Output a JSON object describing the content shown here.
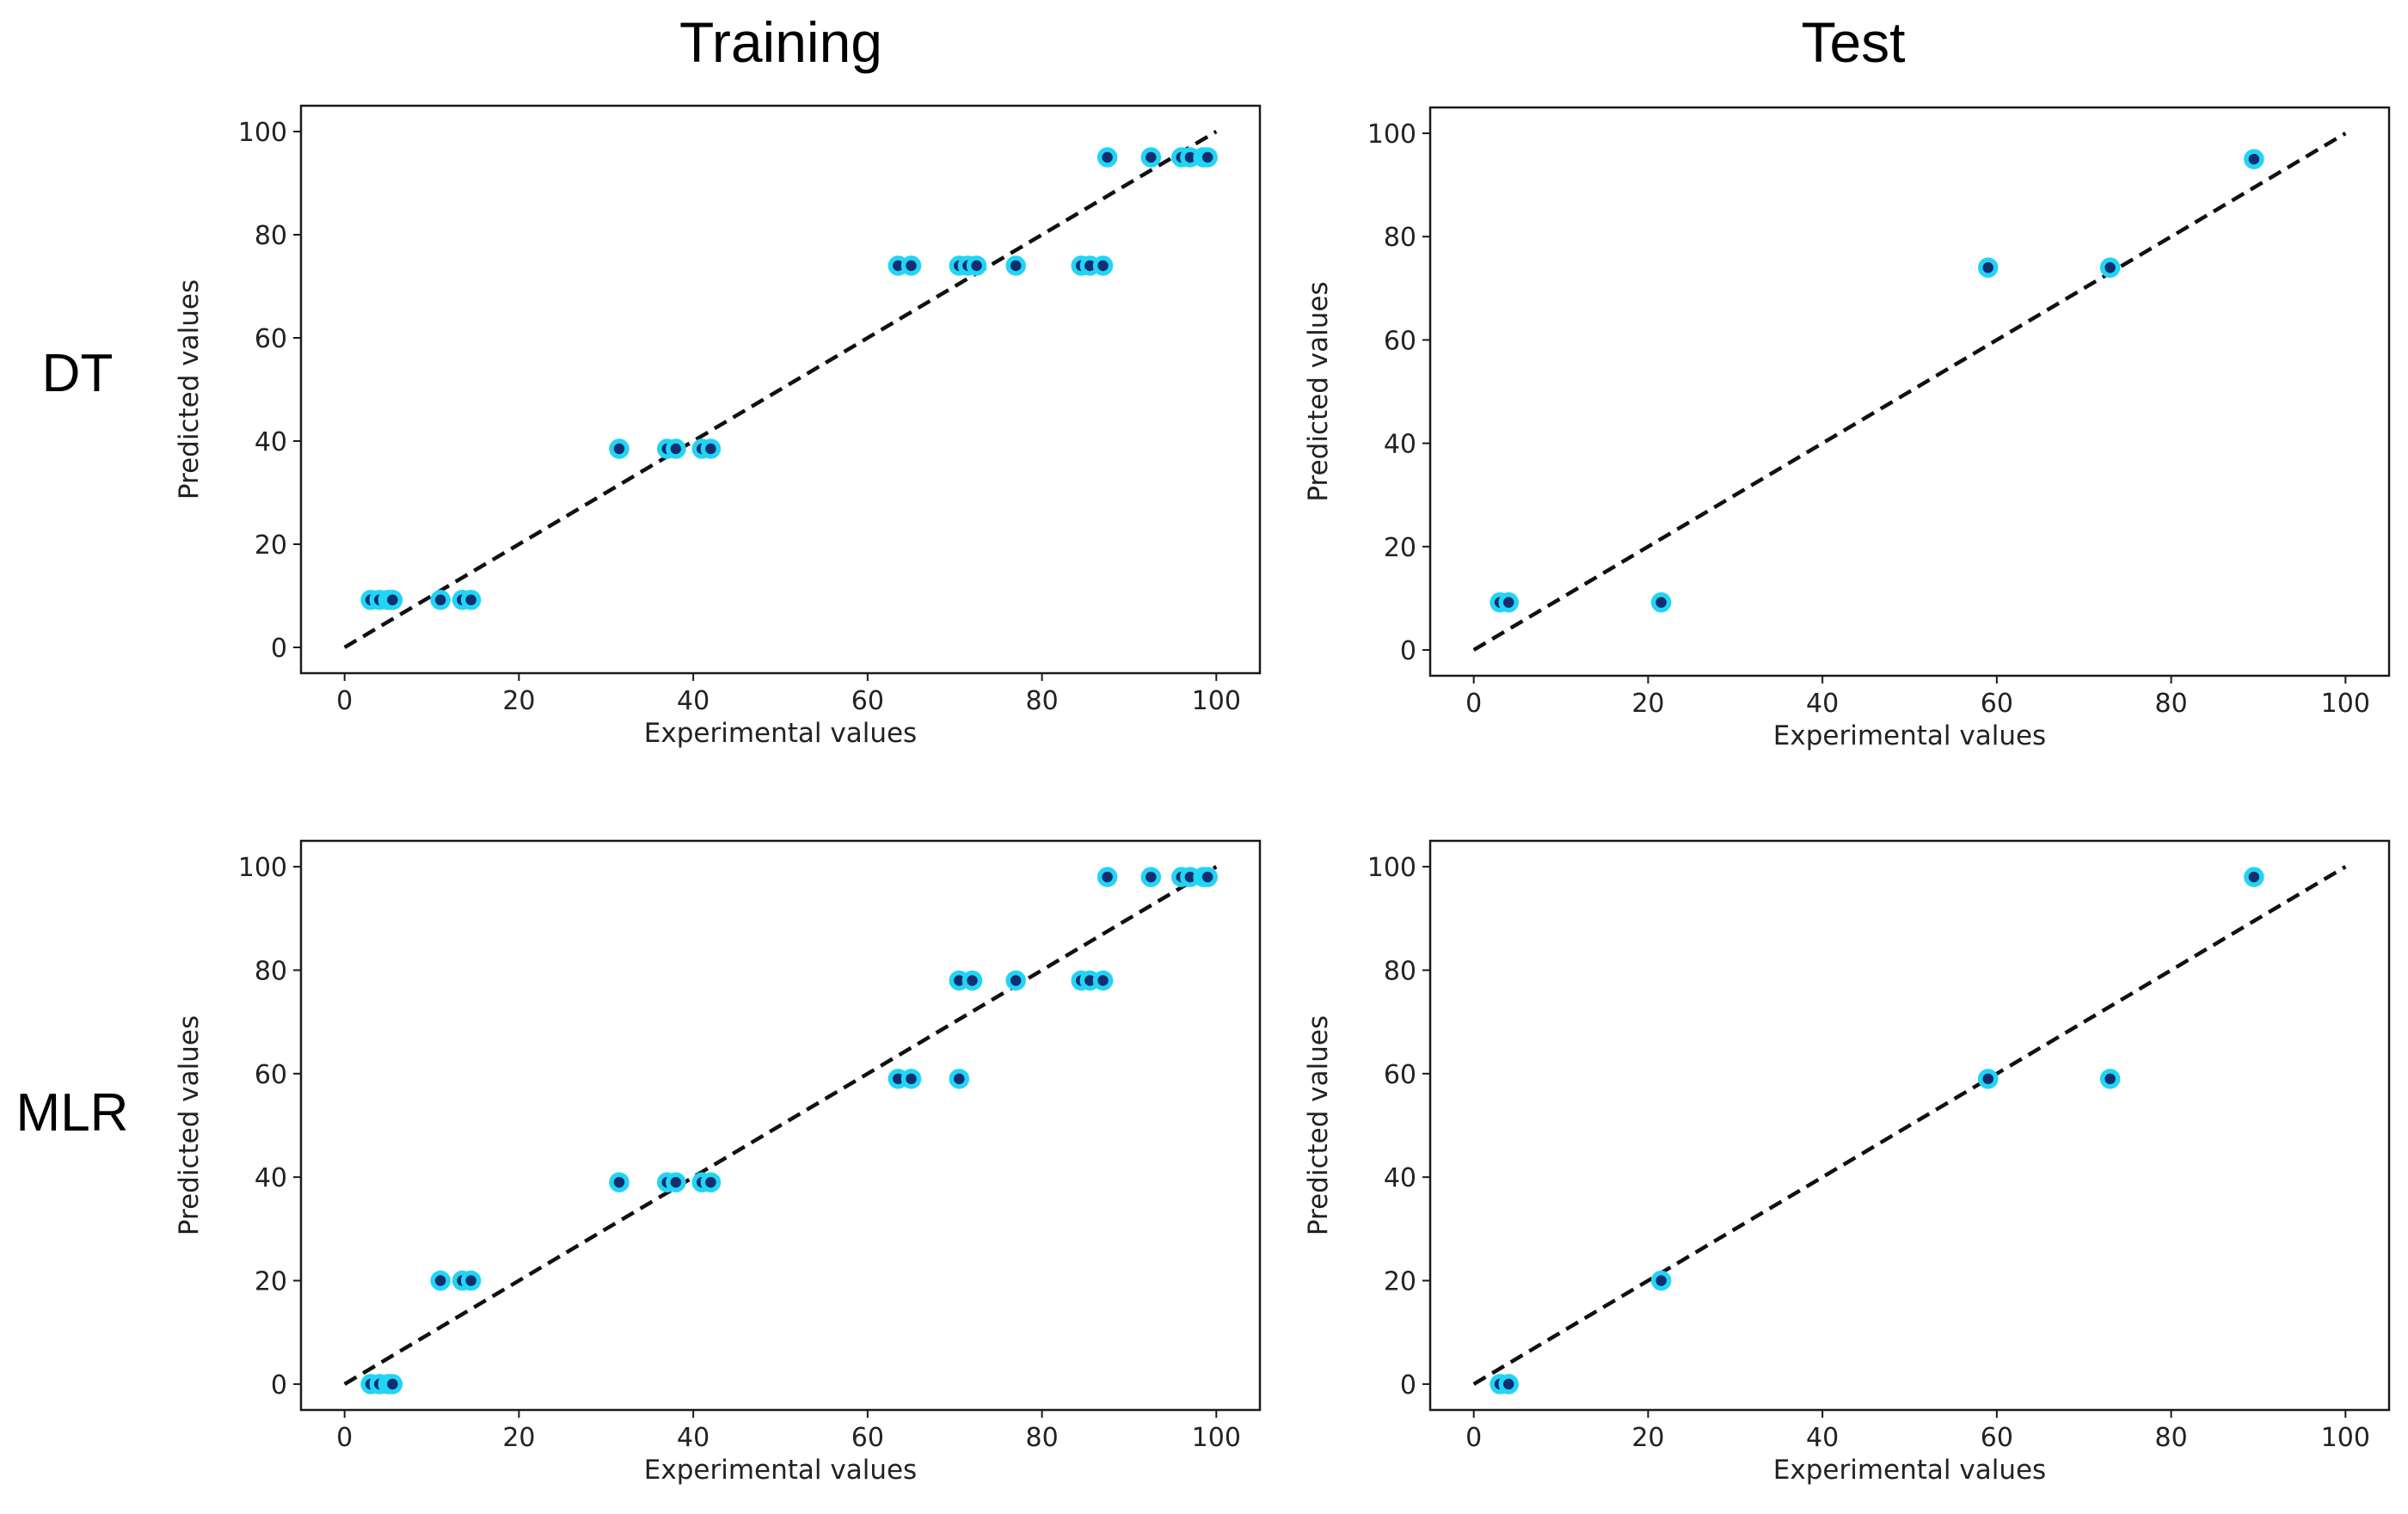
{
  "column_titles": [
    "Training",
    "Test"
  ],
  "row_titles": [
    "DT",
    "MLR"
  ],
  "colors": {
    "marker_edge": "#22d4f5",
    "marker_face": "#0f2f6e",
    "identity_line": "#111111"
  },
  "chart_data": [
    {
      "id": "dt-training",
      "type": "scatter",
      "row": "DT",
      "column": "Training",
      "xlabel": "Experimental values",
      "ylabel": "Predicted values",
      "xlim": [
        -5,
        105
      ],
      "ylim": [
        -5,
        105
      ],
      "xticks": [
        0,
        20,
        40,
        60,
        80,
        100
      ],
      "yticks": [
        0,
        20,
        40,
        60,
        80,
        100
      ],
      "identity_line": [
        [
          0,
          0
        ],
        [
          100,
          100
        ]
      ],
      "points": [
        [
          3,
          9.2
        ],
        [
          4,
          9.2
        ],
        [
          5,
          9.2
        ],
        [
          5.5,
          9.2
        ],
        [
          11,
          9.2
        ],
        [
          13.5,
          9.2
        ],
        [
          14.5,
          9.2
        ],
        [
          31.5,
          38.5
        ],
        [
          37,
          38.5
        ],
        [
          38,
          38.5
        ],
        [
          41,
          38.5
        ],
        [
          42,
          38.5
        ],
        [
          63.5,
          74
        ],
        [
          65,
          74
        ],
        [
          70.5,
          74
        ],
        [
          71.5,
          74
        ],
        [
          72.5,
          74
        ],
        [
          77,
          74
        ],
        [
          84.5,
          74
        ],
        [
          85.5,
          74
        ],
        [
          87,
          74
        ],
        [
          87.5,
          95
        ],
        [
          92.5,
          95
        ],
        [
          96,
          95
        ],
        [
          97,
          95
        ],
        [
          98.5,
          95
        ],
        [
          99,
          95
        ]
      ]
    },
    {
      "id": "dt-test",
      "type": "scatter",
      "row": "DT",
      "column": "Test",
      "xlabel": "Experimental values",
      "ylabel": "Predicted values",
      "xlim": [
        -5,
        105
      ],
      "ylim": [
        -5,
        105
      ],
      "xticks": [
        0,
        20,
        40,
        60,
        80,
        100
      ],
      "yticks": [
        0,
        20,
        40,
        60,
        80,
        100
      ],
      "identity_line": [
        [
          0,
          0
        ],
        [
          100,
          100
        ]
      ],
      "points": [
        [
          3,
          9.2
        ],
        [
          4,
          9.2
        ],
        [
          21.5,
          9.2
        ],
        [
          59,
          74
        ],
        [
          73,
          74
        ],
        [
          89.5,
          95
        ]
      ]
    },
    {
      "id": "mlr-training",
      "type": "scatter",
      "row": "MLR",
      "column": "Training",
      "xlabel": "Experimental values",
      "ylabel": "Predicted values",
      "xlim": [
        -5,
        105
      ],
      "ylim": [
        -5,
        105
      ],
      "xticks": [
        0,
        20,
        40,
        60,
        80,
        100
      ],
      "yticks": [
        0,
        20,
        40,
        60,
        80,
        100
      ],
      "identity_line": [
        [
          0,
          0
        ],
        [
          100,
          100
        ]
      ],
      "points": [
        [
          3,
          0
        ],
        [
          4,
          0
        ],
        [
          5,
          0
        ],
        [
          5.5,
          0
        ],
        [
          11,
          20
        ],
        [
          13.5,
          20
        ],
        [
          14.5,
          20
        ],
        [
          31.5,
          39
        ],
        [
          37,
          39
        ],
        [
          38,
          39
        ],
        [
          41,
          39
        ],
        [
          42,
          39
        ],
        [
          63.5,
          59
        ],
        [
          65,
          59
        ],
        [
          70.5,
          59
        ],
        [
          70.5,
          78
        ],
        [
          72,
          78
        ],
        [
          77,
          78
        ],
        [
          84.5,
          78
        ],
        [
          85.5,
          78
        ],
        [
          87,
          78
        ],
        [
          87.5,
          98
        ],
        [
          92.5,
          98
        ],
        [
          96,
          98
        ],
        [
          97,
          98
        ],
        [
          98.5,
          98
        ],
        [
          99,
          98
        ]
      ]
    },
    {
      "id": "mlr-test",
      "type": "scatter",
      "row": "MLR",
      "column": "Test",
      "xlabel": "Experimental values",
      "ylabel": "Predicted values",
      "xlim": [
        -5,
        105
      ],
      "ylim": [
        -5,
        105
      ],
      "xticks": [
        0,
        20,
        40,
        60,
        80,
        100
      ],
      "yticks": [
        0,
        20,
        40,
        60,
        80,
        100
      ],
      "identity_line": [
        [
          0,
          0
        ],
        [
          100,
          100
        ]
      ],
      "points": [
        [
          3,
          0
        ],
        [
          4,
          0
        ],
        [
          21.5,
          20
        ],
        [
          59,
          59
        ],
        [
          73,
          59
        ],
        [
          89.5,
          98
        ]
      ]
    }
  ]
}
